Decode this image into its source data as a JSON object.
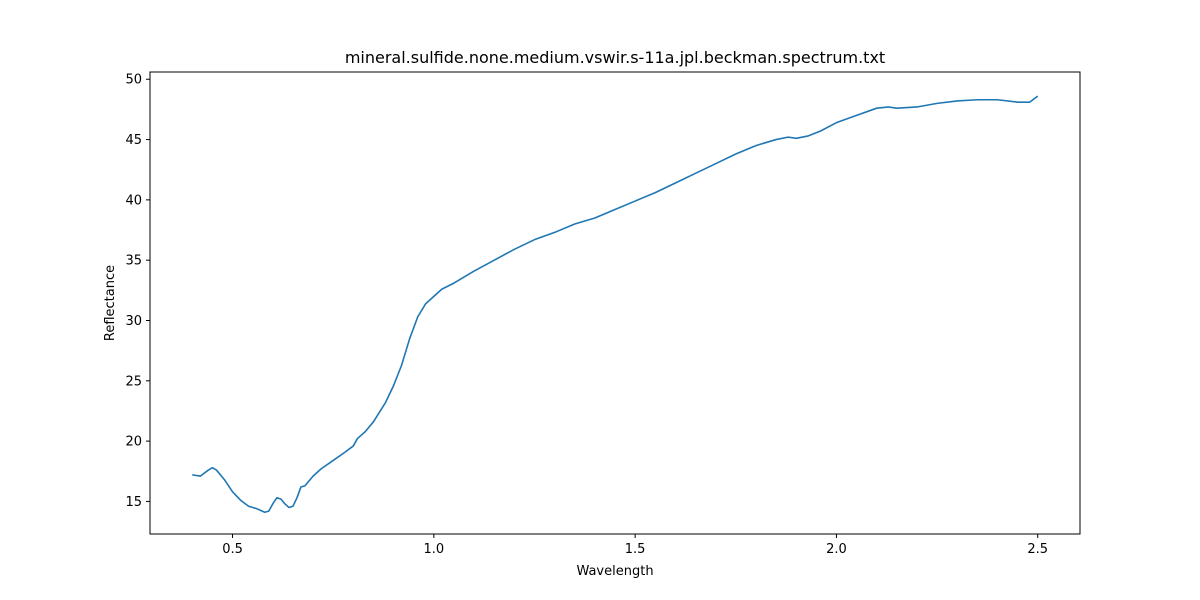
{
  "chart_data": {
    "type": "line",
    "title": "mineral.sulfide.none.medium.vswir.s-11a.jpl.beckman.spectrum.txt",
    "xlabel": "Wavelength",
    "ylabel": "Reflectance",
    "xlim": [
      0.295,
      2.605
    ],
    "ylim": [
      12.3,
      50.6
    ],
    "xticks": [
      0.5,
      1.0,
      1.5,
      2.0,
      2.5
    ],
    "xtick_labels": [
      "0.5",
      "1.0",
      "1.5",
      "2.0",
      "2.5"
    ],
    "yticks": [
      15,
      20,
      25,
      30,
      35,
      40,
      45,
      50
    ],
    "ytick_labels": [
      "15",
      "20",
      "25",
      "30",
      "35",
      "40",
      "45",
      "50"
    ],
    "grid": false,
    "line_color": "#1f77b4",
    "series": [
      {
        "x": [
          0.4,
          0.42,
          0.44,
          0.45,
          0.46,
          0.48,
          0.5,
          0.52,
          0.54,
          0.56,
          0.58,
          0.59,
          0.6,
          0.61,
          0.62,
          0.63,
          0.64,
          0.65,
          0.66,
          0.67,
          0.68,
          0.7,
          0.72,
          0.75,
          0.78,
          0.8,
          0.81,
          0.83,
          0.85,
          0.88,
          0.9,
          0.92,
          0.94,
          0.96,
          0.98,
          1.0,
          1.02,
          1.05,
          1.1,
          1.15,
          1.2,
          1.25,
          1.3,
          1.35,
          1.4,
          1.45,
          1.5,
          1.55,
          1.6,
          1.65,
          1.7,
          1.75,
          1.8,
          1.85,
          1.88,
          1.9,
          1.93,
          1.96,
          2.0,
          2.05,
          2.1,
          2.13,
          2.15,
          2.2,
          2.25,
          2.3,
          2.35,
          2.4,
          2.45,
          2.48,
          2.5
        ],
        "y": [
          17.2,
          17.1,
          17.6,
          17.8,
          17.6,
          16.8,
          15.8,
          15.1,
          14.6,
          14.4,
          14.1,
          14.2,
          14.8,
          15.3,
          15.2,
          14.8,
          14.5,
          14.6,
          15.3,
          16.2,
          16.3,
          17.1,
          17.7,
          18.4,
          19.1,
          19.6,
          20.2,
          20.8,
          21.6,
          23.2,
          24.6,
          26.3,
          28.5,
          30.3,
          31.4,
          32.0,
          32.6,
          33.1,
          34.1,
          35.0,
          35.9,
          36.7,
          37.3,
          38.0,
          38.5,
          39.2,
          39.9,
          40.6,
          41.4,
          42.2,
          43.0,
          43.8,
          44.5,
          45.0,
          45.2,
          45.1,
          45.3,
          45.7,
          46.4,
          47.0,
          47.6,
          47.7,
          47.6,
          47.7,
          48.0,
          48.2,
          48.3,
          48.3,
          48.1,
          48.1,
          48.6
        ]
      }
    ]
  }
}
